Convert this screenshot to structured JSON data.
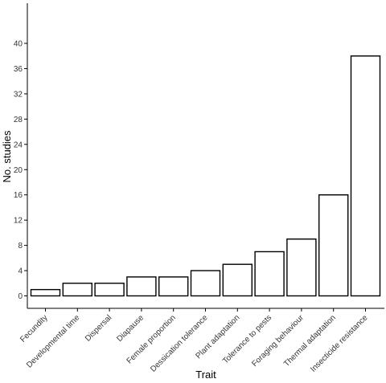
{
  "chart_data": {
    "type": "bar",
    "categories": [
      "Fecundity",
      "Developmental time",
      "Dispersal",
      "Diapause",
      "Female proportion",
      "Dessication tolerance",
      "Plant adaptation",
      "Tolerance to pests",
      "Foraging behaviour",
      "Thermal adaptation",
      "Insecticide resistance"
    ],
    "values": [
      1,
      2,
      2,
      3,
      3,
      4,
      5,
      7,
      9,
      16,
      38
    ],
    "xlabel": "Trait",
    "ylabel": "No. studies",
    "ylim": [
      0,
      42
    ],
    "yticks": [
      0,
      4,
      8,
      12,
      16,
      20,
      24,
      28,
      32,
      36,
      40
    ],
    "grid": false,
    "legend": "none",
    "colors": {
      "fill": "#ffffff",
      "stroke": "#000000"
    }
  }
}
